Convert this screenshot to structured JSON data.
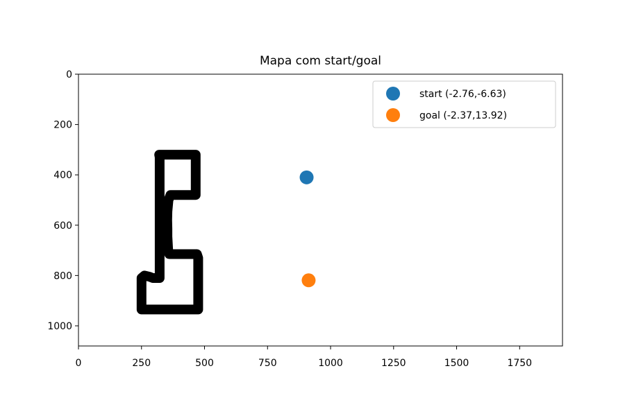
{
  "chart_data": {
    "type": "scatter",
    "title": "Mapa com start/goal",
    "xlabel": "",
    "ylabel": "",
    "xlim": [
      0,
      1920
    ],
    "ylim": [
      1080,
      0
    ],
    "y_inverted": true,
    "grid": false,
    "x_ticks": [
      0,
      250,
      500,
      750,
      1000,
      1250,
      1500,
      1750
    ],
    "y_ticks": [
      0,
      200,
      400,
      600,
      800,
      1000
    ],
    "legend_position": "upper right",
    "map_path": {
      "color": "#000000",
      "points": [
        [
          320,
          320
        ],
        [
          465,
          320
        ],
        [
          465,
          370
        ],
        [
          465,
          480
        ],
        [
          365,
          480
        ],
        [
          357,
          500
        ],
        [
          353,
          545
        ],
        [
          352,
          580
        ],
        [
          353,
          615
        ],
        [
          353,
          645
        ],
        [
          356,
          700
        ],
        [
          360,
          715
        ],
        [
          395,
          715
        ],
        [
          410,
          715
        ],
        [
          445,
          715
        ],
        [
          470,
          715
        ],
        [
          475,
          730
        ],
        [
          475,
          935
        ],
        [
          250,
          935
        ],
        [
          250,
          810
        ],
        [
          262,
          800
        ],
        [
          282,
          805
        ],
        [
          295,
          810
        ],
        [
          322,
          810
        ],
        [
          322,
          650
        ],
        [
          322,
          550
        ],
        [
          322,
          450
        ],
        [
          322,
          330
        ]
      ]
    },
    "series": [
      {
        "name": "start (-2.76,-6.63)",
        "color": "#1f77b4",
        "x": [
          905
        ],
        "y": [
          410
        ]
      },
      {
        "name": "goal (-2.37,13.92)",
        "color": "#ff7f0e",
        "x": [
          913
        ],
        "y": [
          819
        ]
      }
    ]
  }
}
